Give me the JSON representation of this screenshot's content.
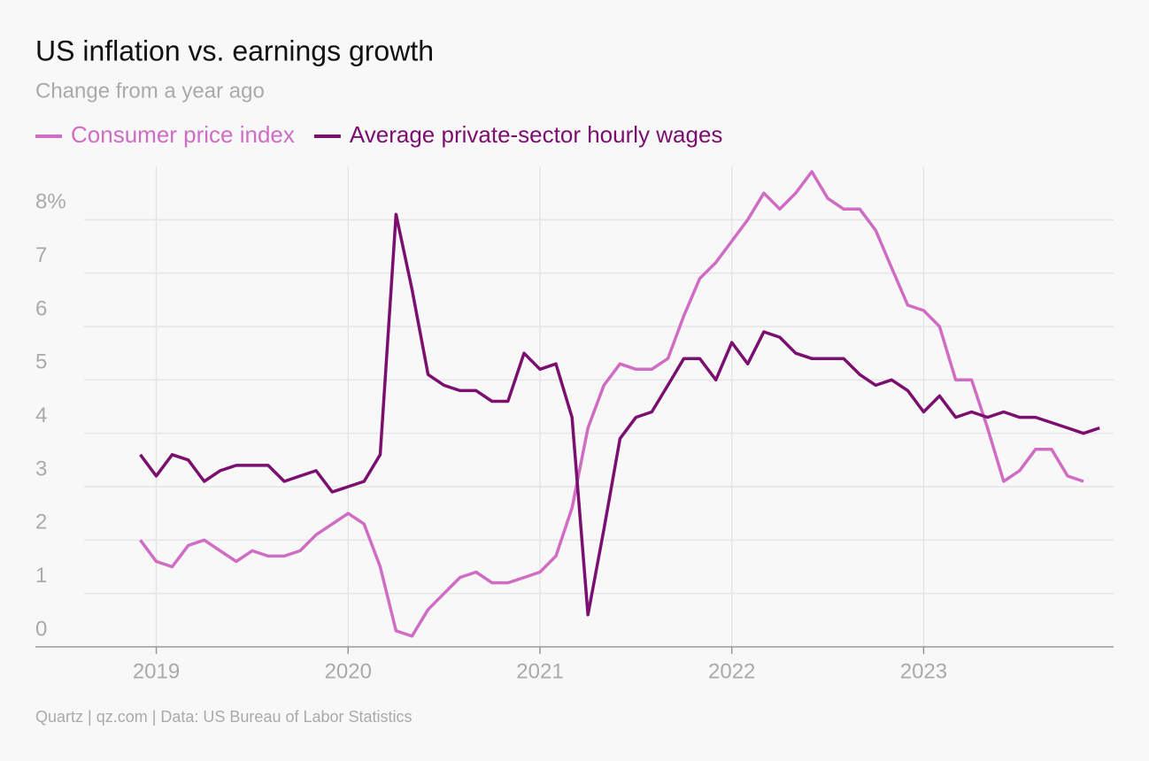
{
  "chart_data": {
    "type": "line",
    "title": "US inflation vs. earnings growth",
    "subtitle": "Change from a year ago",
    "source": "Quartz | qz.com | Data: US Bureau of Labor Statistics",
    "x": [
      2018.917,
      2019,
      2019.083,
      2019.167,
      2019.25,
      2019.333,
      2019.417,
      2019.5,
      2019.583,
      2019.667,
      2019.75,
      2019.833,
      2019.917,
      2020,
      2020.083,
      2020.167,
      2020.25,
      2020.333,
      2020.417,
      2020.5,
      2020.583,
      2020.667,
      2020.75,
      2020.833,
      2020.917,
      2021,
      2021.083,
      2021.167,
      2021.25,
      2021.333,
      2021.417,
      2021.5,
      2021.583,
      2021.667,
      2021.75,
      2021.833,
      2021.917,
      2022,
      2022.083,
      2022.167,
      2022.25,
      2022.333,
      2022.417,
      2022.5,
      2022.583,
      2022.667,
      2022.75,
      2022.833,
      2022.917,
      2023,
      2023.083,
      2023.167,
      2023.25,
      2023.333,
      2023.417,
      2023.5,
      2023.583,
      2023.667,
      2023.75,
      2023.833,
      2023.917
    ],
    "series": [
      {
        "name": "Consumer price index",
        "color": "#cf6cc3",
        "values": [
          2.0,
          1.6,
          1.5,
          1.9,
          2.0,
          1.8,
          1.6,
          1.8,
          1.7,
          1.7,
          1.8,
          2.1,
          2.3,
          2.5,
          2.3,
          1.5,
          0.3,
          0.2,
          0.7,
          1.0,
          1.3,
          1.4,
          1.2,
          1.2,
          1.3,
          1.4,
          1.7,
          2.6,
          4.1,
          4.9,
          5.3,
          5.2,
          5.2,
          5.4,
          6.2,
          6.9,
          7.2,
          7.6,
          8.0,
          8.5,
          8.2,
          8.5,
          8.9,
          8.4,
          8.2,
          8.2,
          7.8,
          7.1,
          6.4,
          6.3,
          6.0,
          5.0,
          5.0,
          4.1,
          3.1,
          3.3,
          3.7,
          3.7,
          3.2,
          3.1,
          null
        ]
      },
      {
        "name": "Average private-sector hourly wages",
        "color": "#7b0f70",
        "values": [
          3.6,
          3.2,
          3.6,
          3.5,
          3.1,
          3.3,
          3.4,
          3.4,
          3.4,
          3.1,
          3.2,
          3.3,
          2.9,
          3.0,
          3.1,
          3.6,
          8.1,
          6.7,
          5.1,
          4.9,
          4.8,
          4.8,
          4.6,
          4.6,
          5.5,
          5.2,
          5.3,
          4.3,
          0.6,
          2.2,
          3.9,
          4.3,
          4.4,
          4.9,
          5.4,
          5.4,
          5.0,
          5.7,
          5.3,
          5.9,
          5.8,
          5.5,
          5.4,
          5.4,
          5.4,
          5.1,
          4.9,
          5.0,
          4.8,
          4.4,
          4.7,
          4.3,
          4.4,
          4.3,
          4.4,
          4.3,
          4.3,
          4.2,
          4.1,
          4.0,
          4.1
        ]
      }
    ],
    "xlim": [
      2018.37,
      2023.99
    ],
    "xticks": [
      2019,
      2020,
      2021,
      2022,
      2023
    ],
    "ylim": [
      0,
      9
    ],
    "yticks": [
      0,
      1,
      2,
      3,
      4,
      5,
      6,
      7,
      {
        "value": 8,
        "label": "8%"
      }
    ],
    "grid": true
  }
}
